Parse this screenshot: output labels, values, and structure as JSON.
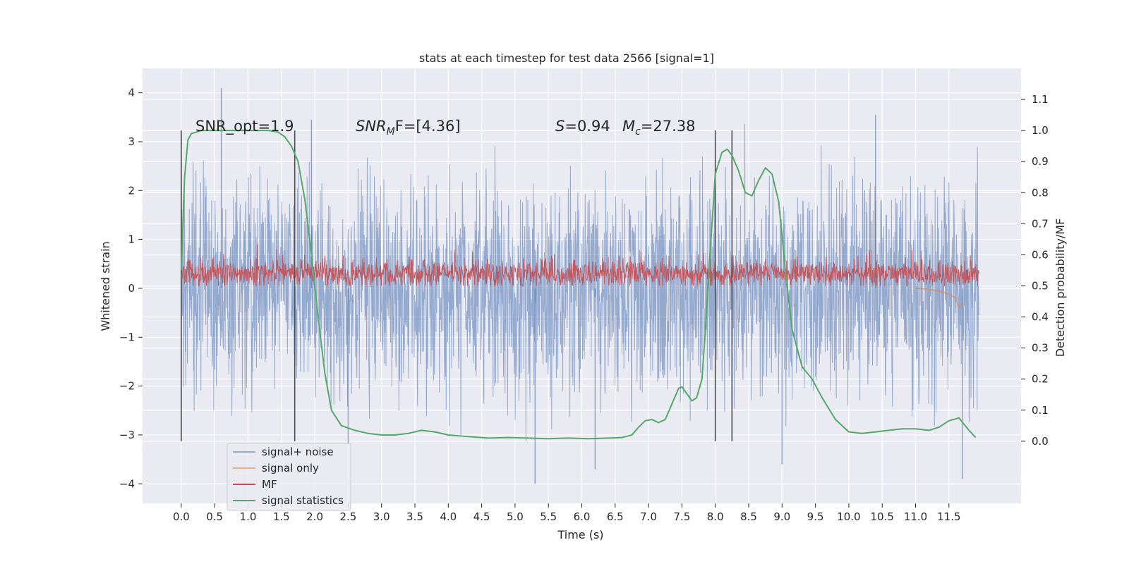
{
  "chart_data": {
    "type": "line",
    "title": "stats at each timestep for test data 2566 [signal=1]",
    "xlabel": "Time (s)",
    "ylabel_left": "Whitened strain",
    "ylabel_right": "Detection probability/MF",
    "xlim": [
      -0.58,
      12.58
    ],
    "ylim_left": [
      -4.4,
      4.5
    ],
    "ylim_right": [
      -0.2,
      1.2
    ],
    "x_ticks": [
      "0.0",
      "0.5",
      "1.0",
      "1.5",
      "2.0",
      "2.5",
      "3.0",
      "3.5",
      "4.0",
      "4.5",
      "5.0",
      "5.5",
      "6.0",
      "6.5",
      "7.0",
      "7.5",
      "8.0",
      "8.5",
      "9.0",
      "9.5",
      "10.0",
      "10.5",
      "11.0",
      "11.5"
    ],
    "y_ticks_left": [
      "4",
      "3",
      "2",
      "1",
      "0",
      "−1",
      "−2",
      "−3",
      "−4"
    ],
    "y_ticks_right": [
      "1.1",
      "1.0",
      "0.9",
      "0.8",
      "0.7",
      "0.6",
      "0.5",
      "0.4",
      "0.3",
      "0.2",
      "0.1",
      "0.0"
    ],
    "annotations": {
      "snr_opt": "SNR_opt=1.9",
      "snr_mf": "SNR",
      "snr_mf_sub": "M",
      "snr_mf_tail": "F=[4.36]",
      "s_label": "S",
      "s_value": "=0.94",
      "mc_label": "M",
      "mc_sub": "c",
      "mc_value": "=27.38"
    },
    "vertical_markers": [
      0.0,
      1.7,
      8.0,
      8.25
    ],
    "legend": {
      "position": "lower-left",
      "entries": [
        "signal+ noise",
        "signal only",
        "MF",
        "signal statistics"
      ]
    },
    "series": [
      {
        "name": "signal+ noise",
        "color": "#4c72b0",
        "style": "dense noise, approx range -4.0 to 4.1",
        "spikes": [
          {
            "x": 0.6,
            "y": 4.1
          },
          {
            "x": 5.3,
            "y": -4.0
          },
          {
            "x": 10.4,
            "y": 3.55
          },
          {
            "x": 11.7,
            "y": -3.9
          },
          {
            "x": 9.0,
            "y": -3.6
          },
          {
            "x": 6.2,
            "y": -3.7
          },
          {
            "x": 2.5,
            "y": -3.2
          },
          {
            "x": 1.95,
            "y": 3.45
          }
        ]
      },
      {
        "name": "signal only",
        "color": "#dd8452",
        "x": [
          11.0,
          11.2,
          11.35,
          11.5,
          11.6,
          11.65,
          11.7
        ],
        "y": [
          0.0,
          -0.02,
          -0.06,
          -0.12,
          -0.2,
          -0.4,
          -0.3
        ]
      },
      {
        "name": "MF",
        "color": "#c44e52",
        "style": "dense band, approx range 0.05 to 0.75"
      },
      {
        "name": "signal statistics",
        "color": "#55a868",
        "x": [
          0.0,
          0.05,
          0.1,
          0.15,
          0.3,
          0.6,
          1.0,
          1.3,
          1.45,
          1.55,
          1.65,
          1.75,
          1.85,
          1.95,
          2.05,
          2.15,
          2.25,
          2.4,
          2.6,
          2.8,
          3.0,
          3.2,
          3.4,
          3.6,
          3.8,
          4.0,
          4.3,
          4.6,
          4.9,
          5.2,
          5.5,
          5.8,
          6.1,
          6.4,
          6.6,
          6.75,
          6.85,
          6.95,
          7.05,
          7.15,
          7.25,
          7.35,
          7.45,
          7.5,
          7.55,
          7.65,
          7.72,
          7.8,
          7.85,
          7.92,
          8.0,
          8.1,
          8.18,
          8.25,
          8.35,
          8.45,
          8.55,
          8.65,
          8.75,
          8.85,
          8.95,
          9.05,
          9.15,
          9.3,
          9.45,
          9.6,
          9.8,
          10.0,
          10.2,
          10.4,
          10.6,
          10.8,
          11.0,
          11.2,
          11.35,
          11.5,
          11.65,
          11.8,
          11.9
        ],
        "y": [
          0.55,
          0.85,
          0.97,
          0.99,
          1.0,
          1.0,
          1.0,
          1.0,
          0.995,
          0.98,
          0.95,
          0.9,
          0.78,
          0.6,
          0.4,
          0.22,
          0.1,
          0.05,
          0.035,
          0.025,
          0.02,
          0.02,
          0.025,
          0.035,
          0.03,
          0.02,
          0.015,
          0.01,
          0.012,
          0.01,
          0.008,
          0.01,
          0.008,
          0.01,
          0.012,
          0.02,
          0.045,
          0.066,
          0.07,
          0.06,
          0.07,
          0.12,
          0.17,
          0.175,
          0.16,
          0.13,
          0.14,
          0.2,
          0.35,
          0.6,
          0.86,
          0.93,
          0.94,
          0.92,
          0.87,
          0.8,
          0.79,
          0.84,
          0.88,
          0.86,
          0.77,
          0.55,
          0.36,
          0.24,
          0.2,
          0.14,
          0.07,
          0.03,
          0.025,
          0.03,
          0.035,
          0.04,
          0.04,
          0.035,
          0.045,
          0.066,
          0.075,
          0.035,
          0.012
        ]
      }
    ]
  }
}
